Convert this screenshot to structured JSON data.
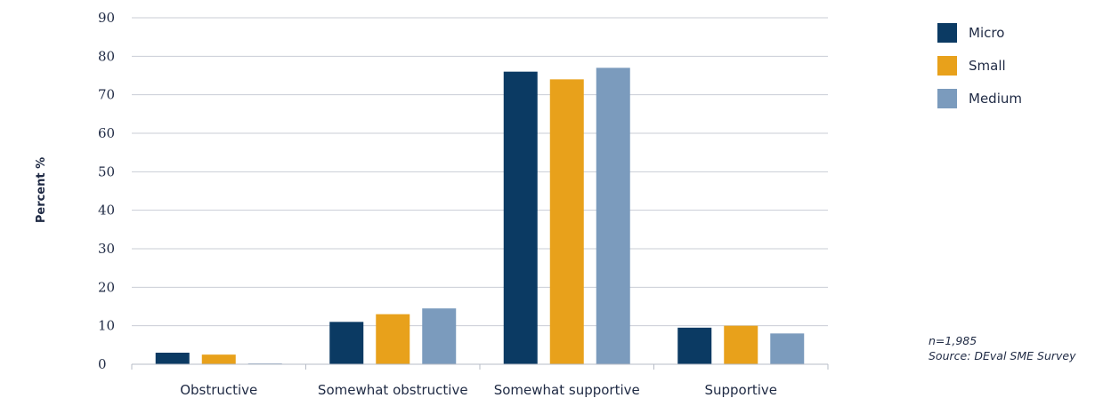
{
  "chart_data": {
    "type": "bar",
    "title": "",
    "xlabel": "",
    "ylabel": "Percent %",
    "ylim": [
      0,
      90
    ],
    "yticks": [
      0,
      10,
      20,
      30,
      40,
      50,
      60,
      70,
      80,
      90
    ],
    "grid": true,
    "legend_position": "top-right",
    "categories": [
      "Obstructive",
      "Somewhat obstructive",
      "Somewhat supportive",
      "Supportive"
    ],
    "series": [
      {
        "name": "Micro",
        "color": "#0b3a63",
        "values": [
          3,
          11,
          76,
          9.5
        ]
      },
      {
        "name": "Small",
        "color": "#e8a11b",
        "values": [
          2.5,
          13,
          74,
          10
        ]
      },
      {
        "name": "Medium",
        "color": "#7b9bbd",
        "values": [
          0.2,
          14.5,
          77,
          8
        ]
      }
    ]
  },
  "notes": {
    "n": "n=1,985",
    "source": "Source: DEval SME Survey"
  }
}
